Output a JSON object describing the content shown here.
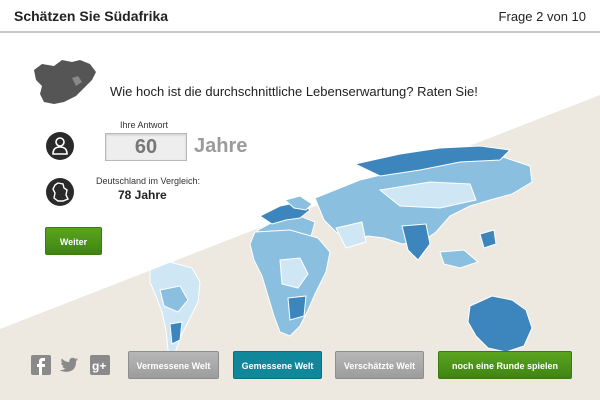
{
  "header": {
    "title": "Schätzen Sie Südafrika",
    "progress": "Frage 2 von 10"
  },
  "question": {
    "text": "Wie hoch ist die durchschnittliche Lebenserwartung? Raten Sie!",
    "answer_label": "Ihre Antwort",
    "answer_value": "60",
    "answer_unit": "Jahre",
    "compare_label": "Deutschland im Vergleich:",
    "compare_value": "78 Jahre"
  },
  "buttons": {
    "weiter": "Weiter",
    "vermessene": "Vermessene Welt",
    "gemessene": "Gemessene Welt",
    "geschaetzte": "Verschätzte Welt",
    "neue_runde": "noch eine Runde spielen"
  },
  "icons": {
    "country": "south-africa-map-icon",
    "user": "person-icon",
    "germany": "germany-map-icon",
    "social": [
      "facebook-icon",
      "twitter-icon",
      "google-plus-icon"
    ]
  },
  "colors": {
    "accent_green": "#4c9619",
    "active_tab": "#10879a",
    "inactive_button": "#a9a9a9",
    "map_light": "#cfe6f4",
    "map_mid": "#8bbfe0",
    "map_dark": "#3d85bd",
    "background_wedge": "#ede9e1"
  }
}
